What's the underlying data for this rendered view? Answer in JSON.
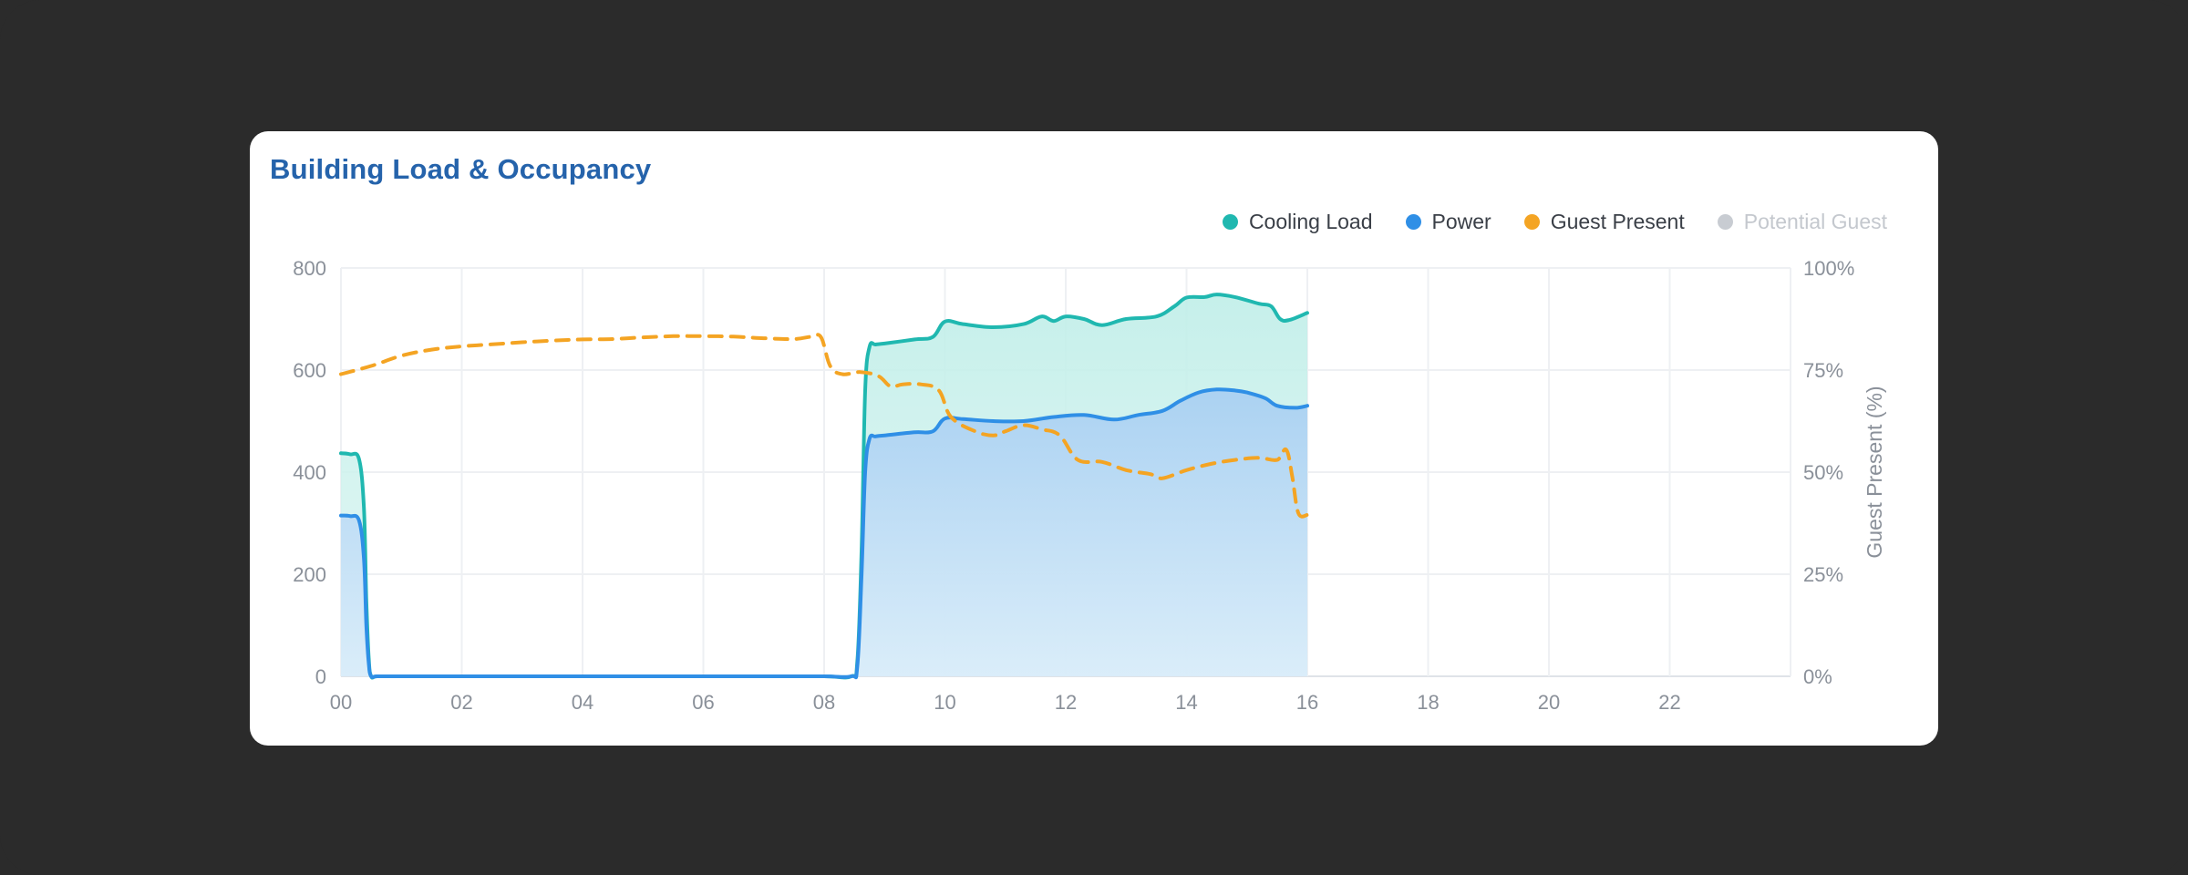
{
  "card": {
    "title": "Building Load & Occupancy"
  },
  "legend": [
    {
      "label": "Cooling Load",
      "color": "#20b8b0",
      "active": true
    },
    {
      "label": "Power",
      "color": "#2f8fe6",
      "active": true
    },
    {
      "label": "Guest Present",
      "color": "#f4a423",
      "active": true
    },
    {
      "label": "Potential Guest",
      "color": "#c8ccd2",
      "active": false
    }
  ],
  "chart_data": {
    "type": "line",
    "title": "Building Load & Occupancy",
    "xlabel": "",
    "ylabel": "",
    "y2label": "Guest Present (%)",
    "xlim": [
      0,
      24
    ],
    "ylim": [
      0,
      800
    ],
    "y2lim": [
      0,
      100
    ],
    "x_ticks": [
      "00",
      "02",
      "04",
      "06",
      "08",
      "10",
      "12",
      "14",
      "16",
      "18",
      "20",
      "22"
    ],
    "y_ticks": [
      "0",
      "200",
      "400",
      "600",
      "800"
    ],
    "y2_ticks": [
      "0%",
      "25%",
      "50%",
      "75%",
      "100%"
    ],
    "grid": true,
    "legend_position": "top-right",
    "series": [
      {
        "name": "Cooling Load",
        "axis": "left",
        "area": true,
        "color": "#20b8b0",
        "x": [
          0,
          0.15,
          0.3,
          0.38,
          0.42,
          0.46,
          0.5,
          0.6,
          1,
          2,
          3,
          4,
          5,
          6,
          7,
          8,
          8.45,
          8.55,
          8.62,
          8.68,
          8.75,
          8.85,
          9,
          9.5,
          9.8,
          10,
          10.3,
          10.8,
          11.3,
          11.6,
          11.8,
          12,
          12.3,
          12.6,
          13,
          13.5,
          13.8,
          14,
          14.3,
          14.5,
          14.8,
          15.2,
          15.4,
          15.55,
          15.7,
          16
        ],
        "values": [
          437,
          435,
          425,
          330,
          150,
          35,
          0,
          0,
          0,
          0,
          0,
          0,
          0,
          0,
          0,
          0,
          0,
          30,
          250,
          560,
          645,
          650,
          652,
          660,
          665,
          695,
          690,
          684,
          690,
          705,
          696,
          705,
          700,
          688,
          700,
          705,
          725,
          742,
          743,
          748,
          743,
          730,
          725,
          700,
          698,
          712
        ]
      },
      {
        "name": "Power",
        "axis": "left",
        "area": true,
        "color": "#2f8fe6",
        "x": [
          0,
          0.15,
          0.3,
          0.38,
          0.42,
          0.46,
          0.5,
          0.6,
          1,
          2,
          3,
          4,
          5,
          6,
          7,
          8,
          8.45,
          8.55,
          8.62,
          8.68,
          8.75,
          8.85,
          9,
          9.5,
          9.8,
          10,
          10.3,
          10.8,
          11.3,
          11.8,
          12.3,
          12.8,
          13.2,
          13.6,
          13.9,
          14.2,
          14.5,
          14.8,
          15.0,
          15.3,
          15.5,
          15.8,
          16
        ],
        "values": [
          315,
          314,
          305,
          230,
          100,
          25,
          0,
          0,
          0,
          0,
          0,
          0,
          0,
          0,
          0,
          0,
          0,
          20,
          200,
          400,
          465,
          470,
          472,
          478,
          480,
          505,
          504,
          500,
          500,
          508,
          512,
          503,
          512,
          520,
          540,
          556,
          562,
          560,
          556,
          545,
          530,
          526,
          530
        ]
      },
      {
        "name": "Guest Present",
        "axis": "right",
        "area": false,
        "dashed": true,
        "color": "#f4a423",
        "x": [
          0,
          0.5,
          1,
          1.5,
          2,
          2.5,
          3,
          3.5,
          4,
          4.5,
          5,
          5.5,
          6,
          6.5,
          7,
          7.5,
          7.8,
          7.95,
          8.1,
          8.3,
          8.6,
          8.9,
          9.1,
          9.3,
          9.6,
          9.9,
          10.1,
          10.5,
          10.8,
          11.0,
          11.3,
          11.6,
          11.9,
          12.2,
          12.6,
          13,
          13.4,
          13.6,
          14,
          14.4,
          14.8,
          15.2,
          15.5,
          15.65,
          15.75,
          15.85,
          16
        ],
        "values": [
          74,
          76,
          78.5,
          80,
          80.8,
          81.3,
          81.8,
          82.2,
          82.5,
          82.6,
          83,
          83.3,
          83.3,
          83.2,
          82.8,
          82.6,
          83.2,
          83,
          76,
          74,
          74.5,
          73.5,
          71,
          71.5,
          71.5,
          70,
          63.5,
          60,
          59,
          60,
          61.5,
          60.5,
          59,
          53,
          52.5,
          50.5,
          49.5,
          48.5,
          50.5,
          52,
          53,
          53.5,
          53,
          55.5,
          49,
          40,
          39.5
        ]
      }
    ]
  }
}
